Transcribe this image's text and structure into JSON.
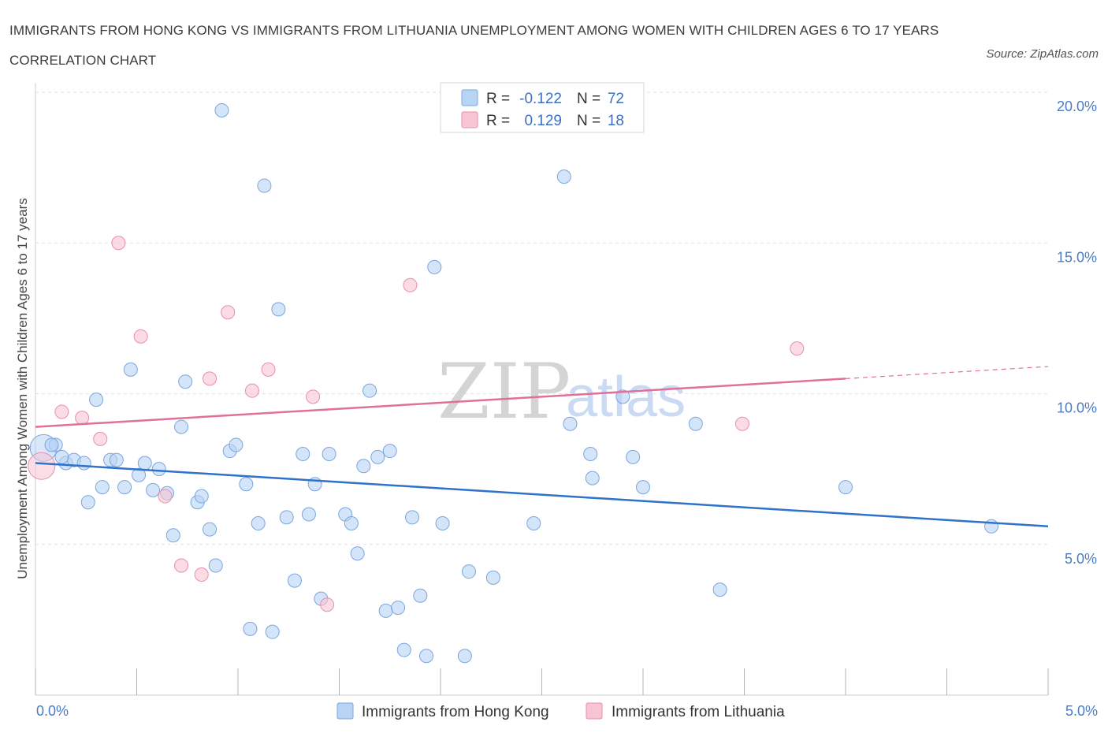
{
  "header": {
    "title": "IMMIGRANTS FROM HONG KONG VS IMMIGRANTS FROM LITHUANIA UNEMPLOYMENT AMONG WOMEN WITH CHILDREN AGES 6 TO 17 YEARS CORRELATION CHART",
    "source": "Source: ZipAtlas.com"
  },
  "watermark": {
    "zip": "ZIP",
    "atlas": "atlas"
  },
  "legend": {
    "r_label": "R =",
    "n_label": "N =",
    "rows": [
      {
        "r": "-0.122",
        "n": "72"
      },
      {
        "r": "0.129",
        "n": "18"
      }
    ]
  },
  "colors": {
    "hong_kong_fill": "#b8d4f5",
    "hong_kong_stroke": "#7aa6de",
    "hong_kong_line": "#2f72c9",
    "lithuania_fill": "#f8c4d4",
    "lithuania_stroke": "#e88fab",
    "lithuania_line": "#e0709a",
    "axis_text": "#4a7cc4",
    "grid": "#dde3ea"
  },
  "chart_data": {
    "type": "scatter",
    "title": "IMMIGRANTS FROM HONG KONG VS IMMIGRANTS FROM LITHUANIA UNEMPLOYMENT AMONG WOMEN WITH CHILDREN AGES 6 TO 17 YEARS CORRELATION CHART",
    "xlabel": "",
    "ylabel": "Unemployment Among Women with Children Ages 6 to 17 years",
    "xlim": [
      0,
      5
    ],
    "ylim": [
      0,
      20
    ],
    "x_tick_labels": [
      "0.0%",
      "5.0%"
    ],
    "y_ticks": [
      5,
      10,
      15,
      20
    ],
    "y_tick_labels": [
      "5.0%",
      "10.0%",
      "15.0%",
      "20.0%"
    ],
    "grid": true,
    "legend_position": "top-center",
    "series": [
      {
        "name": "Immigrants from Hong Kong",
        "r": -0.122,
        "n": 72,
        "trend": {
          "x": [
            0,
            5
          ],
          "y": [
            7.7,
            5.6
          ]
        },
        "points": [
          {
            "x": 0.04,
            "y": 8.2,
            "big": true
          },
          {
            "x": 0.1,
            "y": 8.3
          },
          {
            "x": 0.15,
            "y": 7.7
          },
          {
            "x": 0.19,
            "y": 7.8
          },
          {
            "x": 0.24,
            "y": 7.7
          },
          {
            "x": 0.26,
            "y": 6.4
          },
          {
            "x": 0.3,
            "y": 9.8
          },
          {
            "x": 0.33,
            "y": 6.9
          },
          {
            "x": 0.37,
            "y": 7.8
          },
          {
            "x": 0.4,
            "y": 7.8
          },
          {
            "x": 0.44,
            "y": 6.9
          },
          {
            "x": 0.47,
            "y": 10.8
          },
          {
            "x": 0.51,
            "y": 7.3
          },
          {
            "x": 0.54,
            "y": 7.7
          },
          {
            "x": 0.58,
            "y": 6.8
          },
          {
            "x": 0.61,
            "y": 7.5
          },
          {
            "x": 0.65,
            "y": 6.7
          },
          {
            "x": 0.68,
            "y": 5.3
          },
          {
            "x": 0.72,
            "y": 8.9
          },
          {
            "x": 0.74,
            "y": 10.4
          },
          {
            "x": 0.8,
            "y": 6.4
          },
          {
            "x": 0.82,
            "y": 6.6
          },
          {
            "x": 0.86,
            "y": 5.5
          },
          {
            "x": 0.89,
            "y": 4.3
          },
          {
            "x": 0.92,
            "y": 19.4
          },
          {
            "x": 0.96,
            "y": 8.1
          },
          {
            "x": 0.99,
            "y": 8.3
          },
          {
            "x": 1.04,
            "y": 7.0
          },
          {
            "x": 1.06,
            "y": 2.2
          },
          {
            "x": 1.1,
            "y": 5.7
          },
          {
            "x": 1.13,
            "y": 16.9
          },
          {
            "x": 1.17,
            "y": 2.1
          },
          {
            "x": 1.2,
            "y": 12.8
          },
          {
            "x": 1.24,
            "y": 5.9
          },
          {
            "x": 1.28,
            "y": 3.8
          },
          {
            "x": 1.32,
            "y": 8.0
          },
          {
            "x": 1.35,
            "y": 6.0
          },
          {
            "x": 1.38,
            "y": 7.0
          },
          {
            "x": 1.41,
            "y": 3.2
          },
          {
            "x": 1.45,
            "y": 8.0
          },
          {
            "x": 1.53,
            "y": 6.0
          },
          {
            "x": 1.56,
            "y": 5.7
          },
          {
            "x": 1.59,
            "y": 4.7
          },
          {
            "x": 1.62,
            "y": 7.6
          },
          {
            "x": 1.65,
            "y": 10.1
          },
          {
            "x": 1.69,
            "y": 7.9
          },
          {
            "x": 1.73,
            "y": 2.8
          },
          {
            "x": 1.75,
            "y": 8.1
          },
          {
            "x": 1.79,
            "y": 2.9
          },
          {
            "x": 1.82,
            "y": 1.5
          },
          {
            "x": 1.86,
            "y": 5.9
          },
          {
            "x": 1.9,
            "y": 3.3
          },
          {
            "x": 1.93,
            "y": 1.3
          },
          {
            "x": 1.97,
            "y": 14.2
          },
          {
            "x": 2.01,
            "y": 5.7
          },
          {
            "x": 2.12,
            "y": 1.3
          },
          {
            "x": 2.14,
            "y": 4.1
          },
          {
            "x": 2.26,
            "y": 3.9
          },
          {
            "x": 2.46,
            "y": 5.7
          },
          {
            "x": 2.61,
            "y": 17.2
          },
          {
            "x": 2.64,
            "y": 9.0
          },
          {
            "x": 2.74,
            "y": 8.0
          },
          {
            "x": 2.75,
            "y": 7.2
          },
          {
            "x": 2.9,
            "y": 9.9
          },
          {
            "x": 2.95,
            "y": 7.9
          },
          {
            "x": 3.0,
            "y": 6.9
          },
          {
            "x": 3.26,
            "y": 9.0
          },
          {
            "x": 3.38,
            "y": 3.5
          },
          {
            "x": 4.0,
            "y": 6.9
          },
          {
            "x": 4.72,
            "y": 5.6
          },
          {
            "x": 0.08,
            "y": 8.3
          },
          {
            "x": 0.13,
            "y": 7.9
          }
        ]
      },
      {
        "name": "Immigrants from Lithuania",
        "r": 0.129,
        "n": 18,
        "trend": {
          "x": [
            0,
            4.0
          ],
          "y": [
            8.9,
            10.5
          ]
        },
        "trend_dashed": {
          "x": [
            4.0,
            5.0
          ],
          "y": [
            10.5,
            10.9
          ]
        },
        "points": [
          {
            "x": 0.03,
            "y": 7.6,
            "big": true
          },
          {
            "x": 0.13,
            "y": 9.4
          },
          {
            "x": 0.23,
            "y": 9.2
          },
          {
            "x": 0.32,
            "y": 8.5
          },
          {
            "x": 0.41,
            "y": 15.0
          },
          {
            "x": 0.52,
            "y": 11.9
          },
          {
            "x": 0.64,
            "y": 6.6
          },
          {
            "x": 0.72,
            "y": 4.3
          },
          {
            "x": 0.82,
            "y": 4.0
          },
          {
            "x": 0.86,
            "y": 10.5
          },
          {
            "x": 0.95,
            "y": 12.7
          },
          {
            "x": 1.07,
            "y": 10.1
          },
          {
            "x": 1.15,
            "y": 10.8
          },
          {
            "x": 1.37,
            "y": 9.9
          },
          {
            "x": 1.44,
            "y": 3.0
          },
          {
            "x": 1.85,
            "y": 13.6
          },
          {
            "x": 3.49,
            "y": 9.0
          },
          {
            "x": 3.76,
            "y": 11.5
          }
        ]
      }
    ]
  }
}
